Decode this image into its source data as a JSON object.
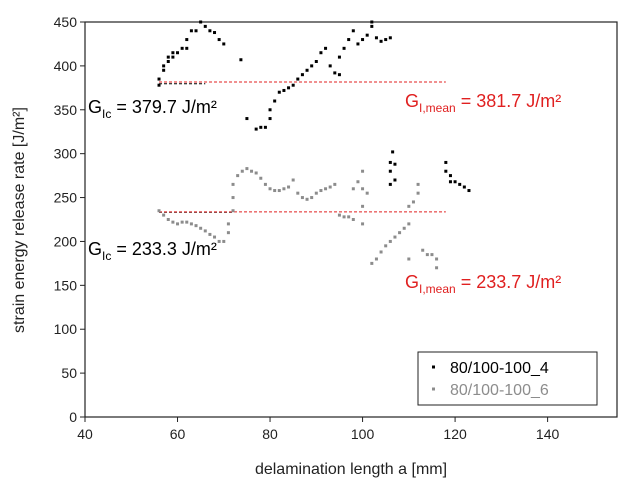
{
  "chart_data": {
    "type": "scatter",
    "xlabel": "delamination length a [mm]",
    "ylabel": "strain energy release rate [J/m²]",
    "xlim": [
      40,
      155
    ],
    "xticks": [
      40,
      60,
      80,
      100,
      120,
      140
    ],
    "ylim": [
      0,
      450
    ],
    "yticks": [
      0,
      50,
      100,
      150,
      200,
      250,
      300,
      350,
      400,
      450
    ],
    "legend": "lower right",
    "series": [
      {
        "name": "80/100-100_4",
        "color": "#000000",
        "x": [
          56,
          56,
          57,
          57,
          58,
          58,
          59,
          59,
          60,
          61,
          62,
          62,
          63,
          64,
          65,
          66,
          67,
          68,
          69,
          70,
          73.7,
          75,
          77,
          78,
          79,
          80,
          80,
          81,
          82,
          83,
          84,
          85,
          86,
          87,
          88,
          89,
          90,
          91,
          92,
          93,
          94,
          95,
          95,
          96,
          97,
          98,
          99,
          100,
          101,
          102,
          102,
          103,
          104,
          105,
          106,
          106,
          106,
          106,
          107,
          107,
          106.5,
          118,
          118,
          119,
          119,
          120,
          121,
          122,
          123
        ],
        "values": [
          378,
          385,
          395,
          400,
          405,
          410,
          410,
          415,
          415,
          420,
          420,
          430,
          440,
          440,
          450,
          445,
          440,
          438,
          430,
          425,
          407,
          340,
          328,
          330,
          330,
          340,
          350,
          360,
          370,
          372,
          375,
          378,
          385,
          390,
          395,
          400,
          405,
          415,
          420,
          400,
          392,
          390,
          410,
          420,
          430,
          440,
          425,
          430,
          435,
          445,
          450,
          432,
          428,
          430,
          432,
          265,
          280,
          290,
          288,
          270,
          302,
          290,
          280,
          275,
          268,
          268,
          265,
          262,
          258
        ]
      },
      {
        "name": "80/100-100_6",
        "color": "#8c8c8c",
        "x": [
          56,
          57,
          58,
          59,
          60,
          61,
          62,
          63,
          64,
          65,
          66,
          67,
          68,
          69,
          70,
          71,
          71,
          72,
          72,
          72,
          73,
          74,
          75,
          76,
          77,
          78,
          79,
          80,
          81,
          82,
          83,
          84,
          85,
          86,
          87,
          88,
          89,
          90,
          91,
          92,
          93,
          94,
          95,
          96,
          97,
          98,
          98,
          99,
          100,
          100,
          100,
          100,
          101,
          102,
          103,
          104,
          105,
          106,
          107,
          108,
          109,
          110,
          110,
          110,
          111,
          112,
          112,
          113,
          114,
          115,
          116,
          116
        ],
        "values": [
          235,
          230,
          225,
          222,
          220,
          222,
          222,
          220,
          218,
          215,
          212,
          208,
          205,
          200,
          200,
          210,
          220,
          235,
          250,
          265,
          275,
          280,
          283,
          280,
          278,
          272,
          265,
          260,
          258,
          258,
          260,
          262,
          270,
          255,
          250,
          248,
          250,
          255,
          258,
          260,
          262,
          265,
          230,
          228,
          228,
          225,
          260,
          268,
          220,
          240,
          260,
          280,
          255,
          175,
          180,
          188,
          195,
          200,
          205,
          210,
          215,
          220,
          240,
          180,
          245,
          255,
          265,
          190,
          185,
          185,
          170,
          180
        ]
      }
    ],
    "reference_lines": [
      {
        "value": 379.7,
        "x": [
          56,
          66
        ],
        "color": "#000000"
      },
      {
        "value": 381.7,
        "x": [
          56,
          118
        ],
        "color": "#e02020"
      },
      {
        "value": 233.3,
        "x": [
          56,
          72
        ],
        "color": "#000000"
      },
      {
        "value": 233.7,
        "x": [
          56,
          118
        ],
        "color": "#e02020"
      }
    ],
    "annotations": [
      {
        "base": "G",
        "sub": "Ic",
        "rest": " = 379.7 J/m²",
        "color": "#000000"
      },
      {
        "base": "G",
        "sub": "I,mean",
        "rest": " = 381.7 J/m²",
        "color": "#e02020"
      },
      {
        "base": "G",
        "sub": "Ic",
        "rest": " = 233.3 J/m²",
        "color": "#000000"
      },
      {
        "base": "G",
        "sub": "I,mean",
        "rest": " = 233.7 J/m²",
        "color": "#e02020"
      }
    ]
  }
}
